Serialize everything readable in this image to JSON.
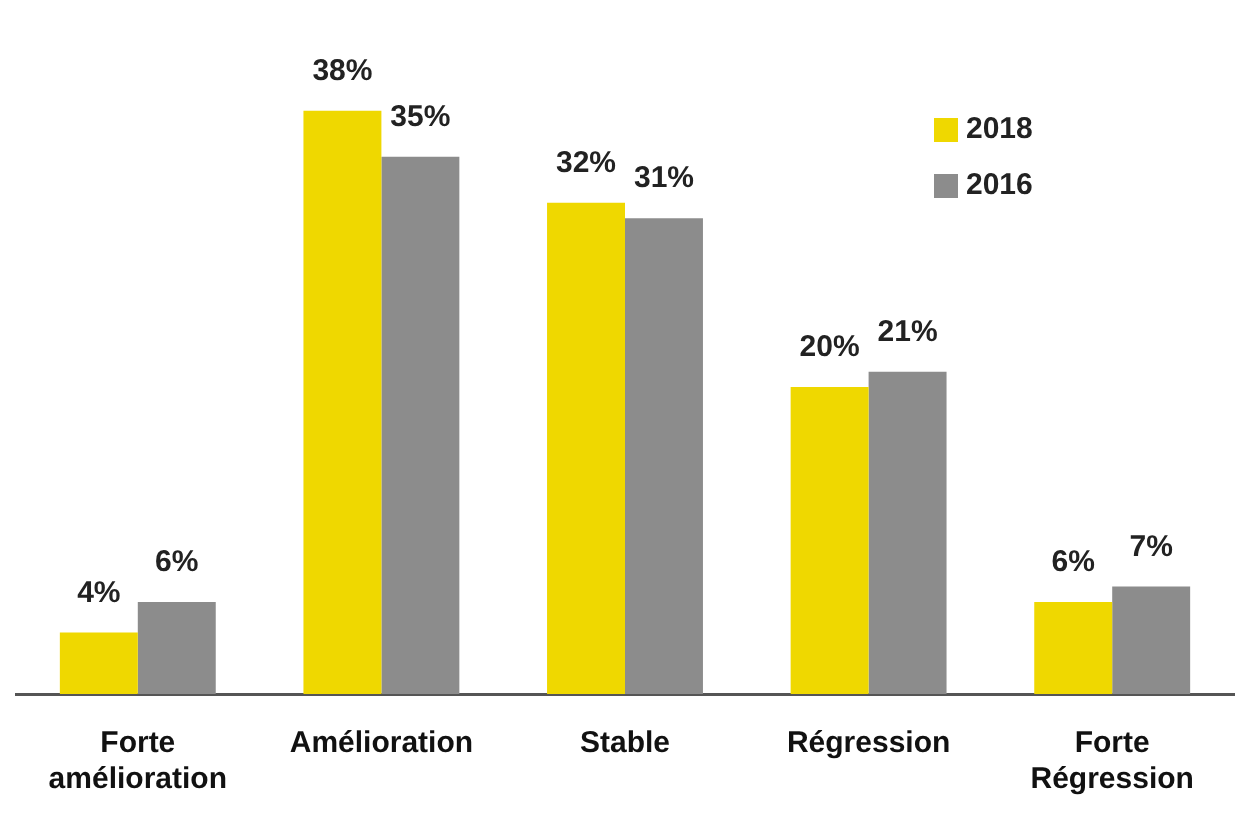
{
  "chart_data": {
    "type": "bar",
    "categories": [
      "Forte amélioration",
      "Amélioration",
      "Stable",
      "Régression",
      "Forte Régression"
    ],
    "series": [
      {
        "name": "2018",
        "color": "#efd800",
        "values": [
          4,
          38,
          32,
          20,
          6
        ],
        "value_labels": [
          "4%",
          "38%",
          "32%",
          "20%",
          "6%"
        ]
      },
      {
        "name": "2016",
        "color": "#8c8c8c",
        "values": [
          6,
          35,
          31,
          21,
          7
        ],
        "value_labels": [
          "6%",
          "35%",
          "31%",
          "21%",
          "7%"
        ]
      }
    ],
    "legend": "top right",
    "grid": false,
    "tick_labels": "x"
  }
}
